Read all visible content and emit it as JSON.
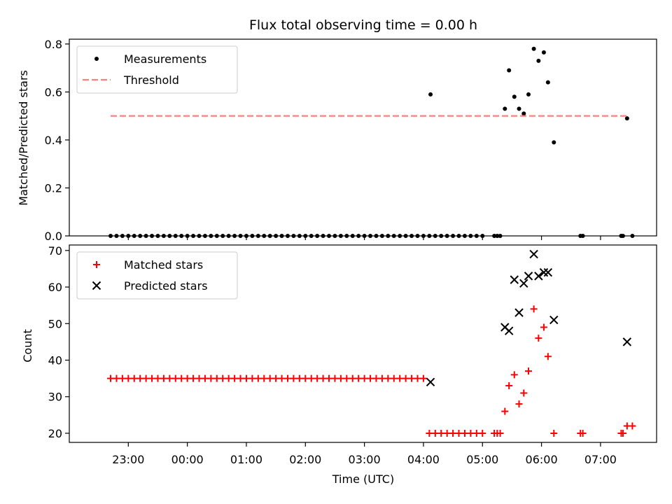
{
  "chart_data": [
    {
      "type": "scatter",
      "title": "Flux total observing time = 0.00 h",
      "xlabel": "",
      "ylabel": "Matched/Predicted stars",
      "ylim": [
        0,
        0.82
      ],
      "yticks": [
        "0.0",
        "0.2",
        "0.4",
        "0.6",
        "0.8"
      ],
      "ytick_values": [
        0,
        0.2,
        0.4,
        0.6,
        0.8
      ],
      "legend_position": "upper-left",
      "series": [
        {
          "name": "Measurements",
          "marker": "dot",
          "color": "#000000",
          "x": [
            22.7,
            22.8,
            22.9,
            23.0,
            23.1,
            23.2,
            23.3,
            23.4,
            23.5,
            23.6,
            23.7,
            23.8,
            23.9,
            24.0,
            24.1,
            24.2,
            24.3,
            24.4,
            24.5,
            24.6,
            24.7,
            24.8,
            24.9,
            25.0,
            25.1,
            25.2,
            25.3,
            25.4,
            25.5,
            25.6,
            25.7,
            25.8,
            25.9,
            26.0,
            26.1,
            26.2,
            26.3,
            26.4,
            26.5,
            26.6,
            26.7,
            26.8,
            26.9,
            27.0,
            27.1,
            27.2,
            27.3,
            27.4,
            27.5,
            27.6,
            27.7,
            27.8,
            27.9,
            28.0,
            28.1,
            28.2,
            28.3,
            28.4,
            28.5,
            28.6,
            28.7,
            28.8,
            28.9,
            29.0,
            29.2,
            29.25,
            29.3,
            29.38,
            29.45,
            29.54,
            29.62,
            29.7,
            29.78,
            29.87,
            29.95,
            30.04,
            30.11,
            30.21,
            30.66,
            30.7,
            31.35,
            31.38,
            31.45,
            31.54,
            28.12
          ],
          "y": [
            0,
            0,
            0,
            0,
            0,
            0,
            0,
            0,
            0,
            0,
            0,
            0,
            0,
            0,
            0,
            0,
            0,
            0,
            0,
            0,
            0,
            0,
            0,
            0,
            0,
            0,
            0,
            0,
            0,
            0,
            0,
            0,
            0,
            0,
            0,
            0,
            0,
            0,
            0,
            0,
            0,
            0,
            0,
            0,
            0,
            0,
            0,
            0,
            0,
            0,
            0,
            0,
            0,
            0,
            0,
            0,
            0,
            0,
            0,
            0,
            0,
            0,
            0,
            0,
            0,
            0,
            0,
            0.53,
            0.69,
            0.58,
            0.53,
            0.51,
            0.59,
            0.78,
            0.73,
            0.765,
            0.64,
            0.39,
            0,
            0,
            0,
            0,
            0.49,
            0,
            0.59
          ]
        },
        {
          "name": "Threshold",
          "marker": "dashed-line",
          "color": "#ff7f7f",
          "x": [
            22.7,
            31.45
          ],
          "y": [
            0.5,
            0.5
          ]
        }
      ]
    },
    {
      "type": "scatter",
      "title": "",
      "xlabel": "Time (UTC)",
      "ylabel": "Count",
      "ylim": [
        17.5,
        71.5
      ],
      "yticks": [
        "20",
        "30",
        "40",
        "50",
        "60",
        "70"
      ],
      "ytick_values": [
        20,
        30,
        40,
        50,
        60,
        70
      ],
      "xlim": [
        22.0,
        31.95
      ],
      "xticks": [
        "23:00",
        "00:00",
        "01:00",
        "02:00",
        "03:00",
        "04:00",
        "05:00",
        "06:00",
        "07:00"
      ],
      "xtick_values": [
        23,
        24,
        25,
        26,
        27,
        28,
        29,
        30,
        31
      ],
      "legend_position": "upper-left",
      "series": [
        {
          "name": "Matched stars",
          "marker": "plus",
          "color": "#ff0000",
          "x": [
            22.7,
            22.8,
            22.9,
            23.0,
            23.1,
            23.2,
            23.3,
            23.4,
            23.5,
            23.6,
            23.7,
            23.8,
            23.9,
            24.0,
            24.1,
            24.2,
            24.3,
            24.4,
            24.5,
            24.6,
            24.7,
            24.8,
            24.9,
            25.0,
            25.1,
            25.2,
            25.3,
            25.4,
            25.5,
            25.6,
            25.7,
            25.8,
            25.9,
            26.0,
            26.1,
            26.2,
            26.3,
            26.4,
            26.5,
            26.6,
            26.7,
            26.8,
            26.9,
            27.0,
            27.1,
            27.2,
            27.3,
            27.4,
            27.5,
            27.6,
            27.7,
            27.8,
            27.9,
            28.0,
            28.1,
            28.2,
            28.3,
            28.4,
            28.5,
            28.6,
            28.7,
            28.8,
            28.9,
            29.0,
            29.2,
            29.25,
            29.3,
            29.38,
            29.45,
            29.54,
            29.62,
            29.7,
            29.78,
            29.87,
            29.95,
            30.04,
            30.11,
            30.21,
            30.66,
            30.7,
            31.35,
            31.38,
            31.45,
            31.54
          ],
          "y": [
            35,
            35,
            35,
            35,
            35,
            35,
            35,
            35,
            35,
            35,
            35,
            35,
            35,
            35,
            35,
            35,
            35,
            35,
            35,
            35,
            35,
            35,
            35,
            35,
            35,
            35,
            35,
            35,
            35,
            35,
            35,
            35,
            35,
            35,
            35,
            35,
            35,
            35,
            35,
            35,
            35,
            35,
            35,
            35,
            35,
            35,
            35,
            35,
            35,
            35,
            35,
            35,
            35,
            35,
            20,
            20,
            20,
            20,
            20,
            20,
            20,
            20,
            20,
            20,
            20,
            20,
            20,
            26,
            33,
            36,
            28,
            31,
            37,
            54,
            46,
            49,
            41,
            20,
            20,
            20,
            20,
            20,
            22,
            22
          ]
        },
        {
          "name": "Predicted stars",
          "marker": "x",
          "color": "#000000",
          "x": [
            28.12,
            29.38,
            29.45,
            29.54,
            29.62,
            29.7,
            29.78,
            29.87,
            29.95,
            30.04,
            30.11,
            30.21,
            31.45
          ],
          "y": [
            34,
            49,
            48,
            62,
            53,
            61,
            63,
            69,
            63,
            64,
            64,
            51,
            45
          ]
        }
      ]
    }
  ]
}
